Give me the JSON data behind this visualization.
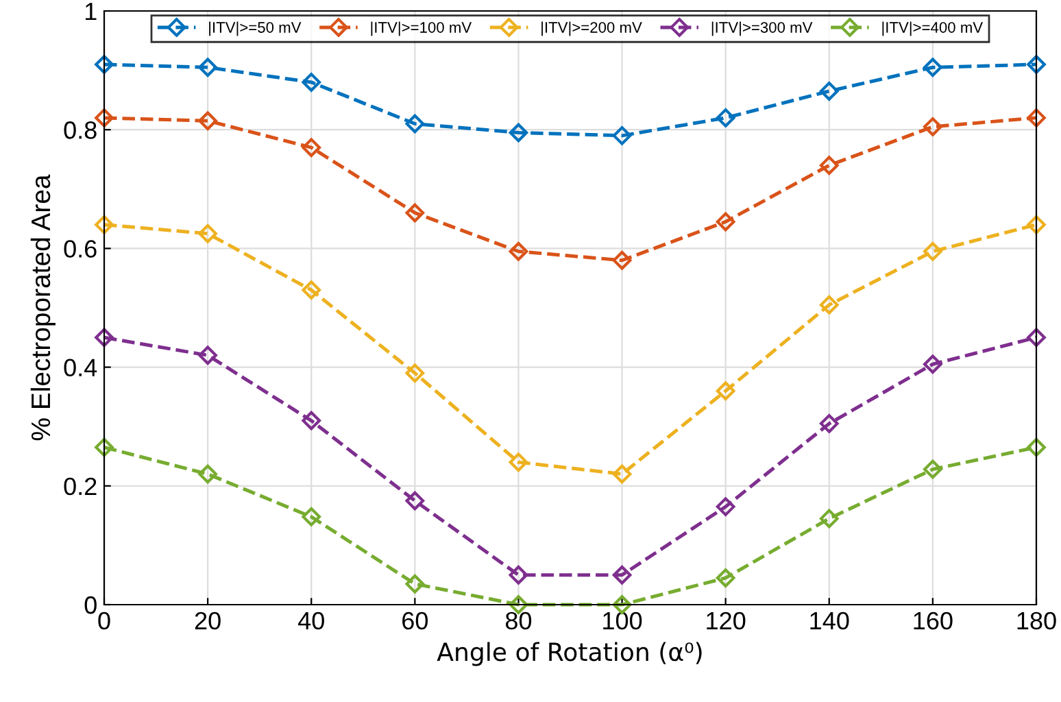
{
  "chart_data": {
    "type": "line",
    "xlabel": "Angle of Rotation (α⁰)",
    "ylabel": "% Electroporated Area",
    "x": [
      0,
      20,
      40,
      60,
      80,
      100,
      120,
      140,
      160,
      180
    ],
    "series": [
      {
        "name": "|ITV|>=50 mV",
        "color": "#0072bd",
        "values": [
          0.91,
          0.905,
          0.88,
          0.81,
          0.795,
          0.79,
          0.82,
          0.865,
          0.905,
          0.91
        ]
      },
      {
        "name": "|ITV|>=100 mV",
        "color": "#d95319",
        "values": [
          0.82,
          0.815,
          0.77,
          0.66,
          0.595,
          0.58,
          0.645,
          0.74,
          0.805,
          0.82
        ]
      },
      {
        "name": "|ITV|>=200 mV",
        "color": "#edb120",
        "values": [
          0.64,
          0.625,
          0.53,
          0.39,
          0.24,
          0.22,
          0.36,
          0.505,
          0.595,
          0.64
        ]
      },
      {
        "name": "|ITV|>=300 mV",
        "color": "#7e2f8e",
        "values": [
          0.45,
          0.42,
          0.31,
          0.175,
          0.05,
          0.05,
          0.165,
          0.305,
          0.405,
          0.45
        ]
      },
      {
        "name": "|ITV|>=400 mV",
        "color": "#77ac30",
        "values": [
          0.265,
          0.22,
          0.148,
          0.035,
          0,
          0,
          0.045,
          0.145,
          0.228,
          0.265
        ]
      }
    ],
    "xlim": [
      0,
      180
    ],
    "xticks": [
      0,
      20,
      40,
      60,
      80,
      100,
      120,
      140,
      160,
      180
    ],
    "ylim": [
      0,
      1
    ],
    "yticks": [
      0,
      0.2,
      0.4,
      0.6,
      0.8,
      1
    ],
    "grid": true,
    "legend": "top",
    "marker": "diamond",
    "line_style": "dashed"
  }
}
